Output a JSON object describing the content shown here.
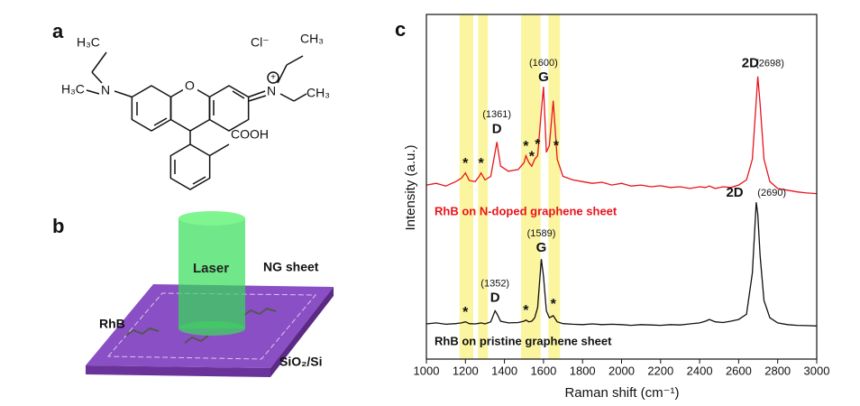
{
  "panels": {
    "a": {
      "label": "a",
      "atoms": [
        "H₃C",
        "H₃C",
        "N",
        "O",
        "N",
        "Cl⁻",
        "CH₃",
        "CH₃",
        "COOH"
      ]
    },
    "b": {
      "label": "b",
      "texts": [
        "Laser",
        "NG sheet",
        "RhB",
        "SiO₂/Si"
      ]
    },
    "c": {
      "label": "c"
    }
  },
  "chart_data": {
    "type": "line",
    "xlabel": "Raman shift (cm⁻¹)",
    "ylabel": "Intensity (a.u.)",
    "xlim": [
      1000,
      3000
    ],
    "xticks": [
      1000,
      1200,
      1400,
      1600,
      1800,
      2000,
      2200,
      2400,
      2600,
      2800,
      3000
    ],
    "ylim": [
      0,
      100
    ],
    "highlight_bands": [
      [
        1170,
        1240
      ],
      [
        1265,
        1315
      ],
      [
        1485,
        1585
      ],
      [
        1625,
        1685
      ]
    ],
    "highlight_color": "#fbf5a0",
    "x": [
      1000,
      1050,
      1100,
      1150,
      1180,
      1200,
      1220,
      1250,
      1270,
      1280,
      1300,
      1330,
      1352,
      1361,
      1380,
      1420,
      1470,
      1500,
      1510,
      1525,
      1540,
      1555,
      1570,
      1589,
      1600,
      1615,
      1630,
      1650,
      1670,
      1700,
      1750,
      1800,
      1850,
      1900,
      1950,
      2000,
      2050,
      2100,
      2150,
      2200,
      2250,
      2300,
      2350,
      2400,
      2430,
      2450,
      2480,
      2520,
      2560,
      2600,
      2640,
      2670,
      2690,
      2698,
      2710,
      2730,
      2760,
      2800,
      2850,
      2900,
      2950,
      3000
    ],
    "series": [
      {
        "name": "RhB on N-doped graphene sheet",
        "color": "#e8141b",
        "values": [
          50.5,
          51,
          50.2,
          51.5,
          52.5,
          54,
          51.8,
          51.5,
          53,
          54,
          52,
          53,
          60,
          63,
          56,
          54.5,
          55,
          57,
          59,
          57,
          56,
          58,
          59,
          72,
          79,
          60,
          62,
          75,
          58,
          53,
          52,
          51.5,
          51,
          51.3,
          50.5,
          51,
          50.2,
          50.5,
          50,
          50.3,
          49.8,
          50,
          49.5,
          50,
          49.8,
          50.2,
          49.5,
          50,
          49.8,
          50.5,
          52,
          58,
          75,
          82,
          74,
          58,
          51.5,
          49.5,
          49,
          48.5,
          48.2,
          48
        ]
      },
      {
        "name": "RhB on pristine graphene sheet",
        "color": "#111111",
        "values": [
          10.2,
          10.5,
          10.1,
          10.3,
          10.5,
          10.8,
          10.3,
          10.2,
          10.4,
          10.5,
          10.2,
          10.8,
          14,
          13.2,
          11,
          10.5,
          10.6,
          11,
          11.3,
          10.8,
          11,
          12,
          15,
          29,
          24,
          14,
          12,
          12.6,
          10.8,
          10.3,
          10.1,
          10,
          10.2,
          10,
          10.1,
          10,
          9.8,
          10,
          9.9,
          9.8,
          10,
          9.9,
          10.2,
          10.5,
          11,
          11.5,
          10.8,
          10.6,
          11,
          11.5,
          13,
          25,
          45.5,
          42,
          30,
          17,
          12,
          10.5,
          10,
          9.8,
          9.7,
          9.6
        ]
      }
    ],
    "annotations": [
      "(1361)",
      "D",
      "(1600)",
      "G",
      "2D",
      "(2698)",
      "*",
      "*",
      "*",
      "*",
      "*",
      "*",
      "(1352)",
      "D",
      "(1589)",
      "G",
      "2D",
      "(2690)",
      "*",
      "*",
      "*"
    ]
  }
}
